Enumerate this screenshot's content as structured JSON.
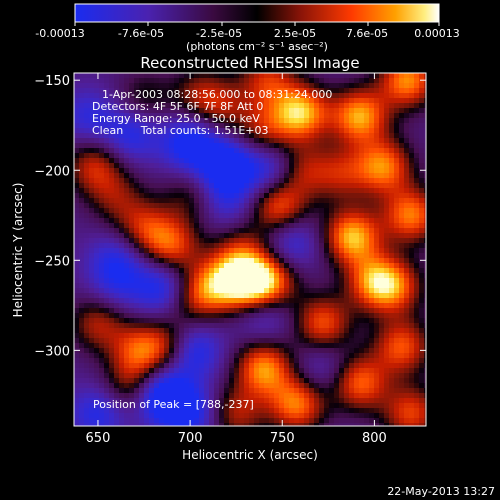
{
  "chart_data": {
    "type": "heatmap",
    "colorbar": {
      "ticks": [
        "-0.00013",
        "-7.6e-05",
        "-2.5e-05",
        "2.5e-05",
        "7.6e-05",
        "0.00013"
      ],
      "units": "(photons cm⁻² s⁻¹ asec⁻²)",
      "range": [
        -0.00013,
        0.00013
      ],
      "colormap": [
        "#1a2cf0",
        "#3b24b8",
        "#5a1c80",
        "#2a0a1a",
        "#8a1810",
        "#ff3000",
        "#ff9000",
        "#ffe060",
        "#ffffff"
      ]
    },
    "title": "Reconstructed RHESSI Image",
    "annotations": [
      "1-Apr-2003 08:28:56.000 to 08:31:24.000",
      "Detectors: 4F 5F 6F 7F 8F  Att 0",
      "Energy Range: 25.0 - 50.0 keV",
      "Clean     Total counts: 1.51E+03"
    ],
    "peak_label": "Position of Peak = [788,-237]",
    "xlabel": "Heliocentric X (arcsec)",
    "ylabel": "Heliocentric Y (arcsec)",
    "xlim": [
      637,
      828
    ],
    "ylim": [
      -342,
      -146
    ],
    "xticks": [
      {
        "value": 650,
        "label": "650"
      },
      {
        "value": 700,
        "label": "700"
      },
      {
        "value": 750,
        "label": "750"
      },
      {
        "value": 800,
        "label": "800"
      }
    ],
    "yticks": [
      {
        "value": -150,
        "label": "−150"
      },
      {
        "value": -200,
        "label": "−200"
      },
      {
        "value": -250,
        "label": "−250"
      },
      {
        "value": -300,
        "label": "−300"
      }
    ],
    "peak": {
      "x": 788,
      "y": -237
    },
    "blobs": [
      {
        "x": 748,
        "y": -220,
        "v": 0.8
      },
      {
        "x": 760,
        "y": -168,
        "v": 1.0
      },
      {
        "x": 792,
        "y": -170,
        "v": 0.95
      },
      {
        "x": 818,
        "y": -150,
        "v": 0.9
      },
      {
        "x": 805,
        "y": -198,
        "v": 0.85
      },
      {
        "x": 788,
        "y": -237,
        "v": 1.0
      },
      {
        "x": 820,
        "y": -225,
        "v": 0.85
      },
      {
        "x": 800,
        "y": -262,
        "v": 0.8
      },
      {
        "x": 772,
        "y": -285,
        "v": 0.75
      },
      {
        "x": 745,
        "y": -262,
        "v": 0.55
      },
      {
        "x": 728,
        "y": -245,
        "v": 0.5
      },
      {
        "x": 734,
        "y": -263,
        "v": 0.95
      },
      {
        "x": 718,
        "y": -262,
        "v": 0.75
      },
      {
        "x": 703,
        "y": -270,
        "v": 0.6
      },
      {
        "x": 690,
        "y": -242,
        "v": 0.7
      },
      {
        "x": 675,
        "y": -232,
        "v": 0.55
      },
      {
        "x": 700,
        "y": -215,
        "v": 0.35
      },
      {
        "x": 705,
        "y": -158,
        "v": 0.45
      },
      {
        "x": 742,
        "y": -150,
        "v": 0.6
      },
      {
        "x": 740,
        "y": -178,
        "v": 0.5
      },
      {
        "x": 648,
        "y": -198,
        "v": 0.6
      },
      {
        "x": 660,
        "y": -215,
        "v": 0.4
      },
      {
        "x": 650,
        "y": -285,
        "v": 0.55
      },
      {
        "x": 672,
        "y": -300,
        "v": 0.65
      },
      {
        "x": 690,
        "y": -298,
        "v": 0.7
      },
      {
        "x": 668,
        "y": -320,
        "v": 0.5
      },
      {
        "x": 740,
        "y": -310,
        "v": 0.9
      },
      {
        "x": 758,
        "y": -330,
        "v": 0.85
      },
      {
        "x": 792,
        "y": -318,
        "v": 0.8
      },
      {
        "x": 815,
        "y": -298,
        "v": 0.75
      },
      {
        "x": 820,
        "y": -335,
        "v": 0.7
      },
      {
        "x": 725,
        "y": -335,
        "v": 0.55
      },
      {
        "x": 812,
        "y": -265,
        "v": 0.6
      },
      {
        "x": 718,
        "y": -165,
        "v": 0.4
      },
      {
        "x": 675,
        "y": -160,
        "v": 0.35
      },
      {
        "x": 782,
        "y": -202,
        "v": 0.5
      },
      {
        "x": 760,
        "y": -200,
        "v": 0.55
      },
      {
        "x": 700,
        "y": -300,
        "v": -0.8
      },
      {
        "x": 685,
        "y": -325,
        "v": -0.85
      },
      {
        "x": 740,
        "y": -280,
        "v": -0.4
      },
      {
        "x": 720,
        "y": -198,
        "v": -0.8
      },
      {
        "x": 700,
        "y": -185,
        "v": -0.7
      },
      {
        "x": 745,
        "y": -200,
        "v": -0.55
      },
      {
        "x": 685,
        "y": -265,
        "v": -0.6
      },
      {
        "x": 660,
        "y": -250,
        "v": -0.45
      },
      {
        "x": 755,
        "y": -240,
        "v": -0.45
      },
      {
        "x": 668,
        "y": -180,
        "v": -0.5
      },
      {
        "x": 645,
        "y": -170,
        "v": -0.4
      },
      {
        "x": 720,
        "y": -218,
        "v": -0.35
      },
      {
        "x": 650,
        "y": -335,
        "v": -0.5
      },
      {
        "x": 700,
        "y": -335,
        "v": -0.55
      },
      {
        "x": 660,
        "y": -265,
        "v": -0.3
      },
      {
        "x": 772,
        "y": -310,
        "v": -0.3
      }
    ]
  },
  "footer": {
    "date": "22-May-2013 13:27"
  }
}
